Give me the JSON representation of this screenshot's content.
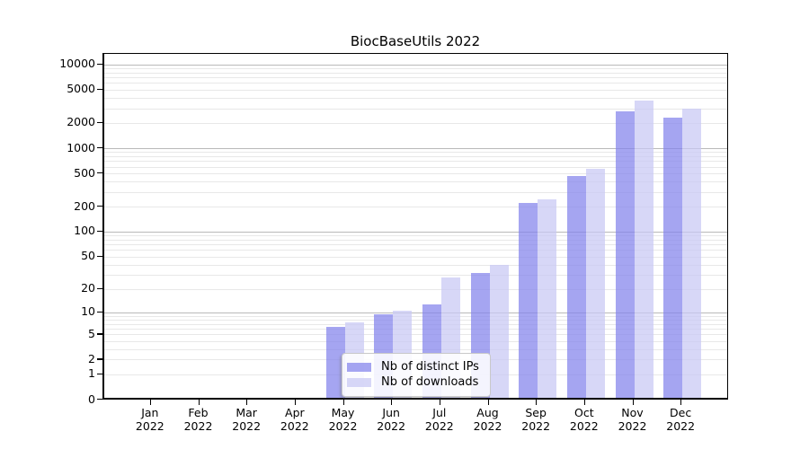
{
  "chart_data": {
    "type": "bar",
    "title": "BiocBaseUtils 2022",
    "x_categories": [
      "Jan 2022",
      "Feb 2022",
      "Mar 2022",
      "Apr 2022",
      "May 2022",
      "Jun 2022",
      "Jul 2022",
      "Aug 2022",
      "Sep 2022",
      "Oct 2022",
      "Nov 2022",
      "Dec 2022"
    ],
    "months": [
      "Jan",
      "Feb",
      "Mar",
      "Apr",
      "May",
      "Jun",
      "Jul",
      "Aug",
      "Sep",
      "Oct",
      "Nov",
      "Dec"
    ],
    "year": "2022",
    "series": [
      {
        "name": "Nb of distinct IPs",
        "color": "rgba(130,130,235,0.72)",
        "values": [
          0,
          0,
          0,
          0,
          6,
          9,
          12,
          30,
          210,
          440,
          2600,
          2200
        ]
      },
      {
        "name": "Nb of downloads",
        "color": "rgba(199,199,244,0.72)",
        "values": [
          0,
          0,
          0,
          0,
          7,
          10,
          26,
          38,
          230,
          540,
          3500,
          2800
        ]
      }
    ],
    "y_axis": {
      "scale": "log1p",
      "ticks": [
        0,
        1,
        2,
        5,
        10,
        20,
        50,
        100,
        200,
        500,
        1000,
        2000,
        5000,
        10000
      ],
      "major_gridlines": [
        10,
        100,
        1000,
        10000
      ],
      "min": 0,
      "max": 10000
    },
    "legend": {
      "position": "lower center",
      "entries": [
        "Nb of distinct IPs",
        "Nb of downloads"
      ]
    },
    "grid": true,
    "colors": {
      "grid_major": "#b9b9b9",
      "grid_minor": "#e8e8e8",
      "axis": "#000000",
      "background": "#ffffff"
    }
  }
}
